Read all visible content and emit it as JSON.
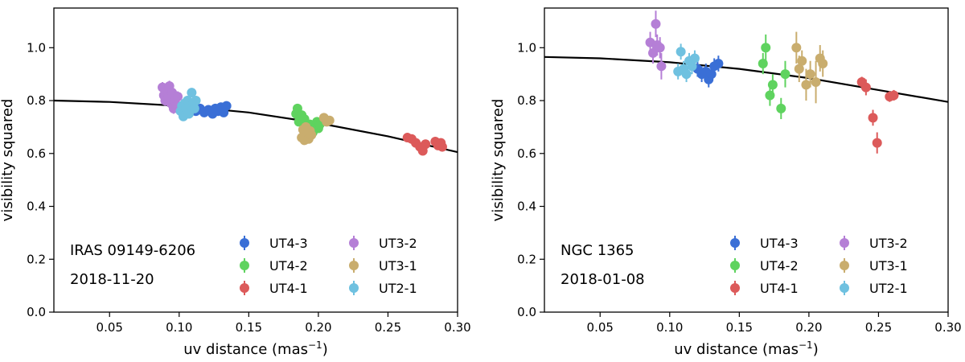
{
  "figure": {
    "series_colors": {
      "UT4-3": "#3a6fd6",
      "UT4-2": "#5fd35f",
      "UT4-1": "#dc5a5a",
      "UT3-2": "#b57fd6",
      "UT3-1": "#c9ad6e",
      "UT2-1": "#6fc1e0"
    },
    "legend_order": [
      "UT4-3",
      "UT4-2",
      "UT4-1",
      "UT3-2",
      "UT3-1",
      "UT2-1"
    ]
  },
  "chart_data": [
    {
      "type": "scatter",
      "name": "IRAS 09149-6206",
      "date": "2018-11-20",
      "xlabel": "uv distance (mas",
      "xlabel_sup": "−1",
      "xlabel_close": ")",
      "ylabel": "visibility squared",
      "xlim": [
        0.01,
        0.3
      ],
      "ylim": [
        0.0,
        1.15
      ],
      "xticks": [
        0.05,
        0.1,
        0.15,
        0.2,
        0.25,
        0.3
      ],
      "xtick_labels": [
        "0.05",
        "0.10",
        "0.15",
        "0.20",
        "0.25",
        "0.30"
      ],
      "yticks": [
        0.0,
        0.2,
        0.4,
        0.6,
        0.8,
        1.0
      ],
      "ytick_labels": [
        "0.0",
        "0.2",
        "0.4",
        "0.6",
        "0.8",
        "1.0"
      ],
      "legend_loc": "lower-right",
      "fit": {
        "v0": 0.8,
        "halfwidth_mas": 0.0,
        "curve": [
          [
            0.01,
            0.8
          ],
          [
            0.05,
            0.795
          ],
          [
            0.1,
            0.78
          ],
          [
            0.15,
            0.755
          ],
          [
            0.2,
            0.715
          ],
          [
            0.25,
            0.665
          ],
          [
            0.3,
            0.605
          ]
        ]
      },
      "series": [
        {
          "name": "UT4-3",
          "points": [
            [
              0.112,
              0.76,
              0.01
            ],
            [
              0.115,
              0.77,
              0.01
            ],
            [
              0.118,
              0.755,
              0.01
            ],
            [
              0.121,
              0.765,
              0.01
            ],
            [
              0.124,
              0.75,
              0.01
            ],
            [
              0.126,
              0.77,
              0.01
            ],
            [
              0.128,
              0.76,
              0.01
            ],
            [
              0.13,
              0.775,
              0.01
            ],
            [
              0.132,
              0.755,
              0.01
            ],
            [
              0.134,
              0.78,
              0.01
            ]
          ]
        },
        {
          "name": "UT4-2",
          "points": [
            [
              0.184,
              0.75,
              0.015
            ],
            [
              0.185,
              0.77,
              0.015
            ],
            [
              0.186,
              0.72,
              0.015
            ],
            [
              0.188,
              0.745,
              0.015
            ],
            [
              0.19,
              0.73,
              0.015
            ],
            [
              0.194,
              0.71,
              0.015
            ],
            [
              0.196,
              0.68,
              0.015
            ],
            [
              0.199,
              0.72,
              0.015
            ],
            [
              0.2,
              0.695,
              0.015
            ],
            [
              0.201,
              0.71,
              0.015
            ]
          ]
        },
        {
          "name": "UT4-1",
          "points": [
            [
              0.264,
              0.66,
              0.01
            ],
            [
              0.267,
              0.655,
              0.01
            ],
            [
              0.27,
              0.64,
              0.01
            ],
            [
              0.273,
              0.625,
              0.01
            ],
            [
              0.275,
              0.61,
              0.01
            ],
            [
              0.277,
              0.635,
              0.01
            ],
            [
              0.284,
              0.645,
              0.01
            ],
            [
              0.286,
              0.63,
              0.01
            ],
            [
              0.288,
              0.64,
              0.01
            ],
            [
              0.289,
              0.625,
              0.01
            ]
          ]
        },
        {
          "name": "UT3-2",
          "points": [
            [
              0.088,
              0.85,
              0.02
            ],
            [
              0.089,
              0.82,
              0.02
            ],
            [
              0.09,
              0.8,
              0.02
            ],
            [
              0.091,
              0.84,
              0.02
            ],
            [
              0.092,
              0.81,
              0.02
            ],
            [
              0.093,
              0.855,
              0.02
            ],
            [
              0.094,
              0.79,
              0.02
            ],
            [
              0.095,
              0.83,
              0.02
            ],
            [
              0.096,
              0.77,
              0.02
            ],
            [
              0.097,
              0.8,
              0.02
            ],
            [
              0.098,
              0.78,
              0.02
            ],
            [
              0.099,
              0.815,
              0.02
            ]
          ]
        },
        {
          "name": "UT3-1",
          "points": [
            [
              0.188,
              0.66,
              0.015
            ],
            [
              0.189,
              0.69,
              0.015
            ],
            [
              0.19,
              0.65,
              0.015
            ],
            [
              0.191,
              0.7,
              0.015
            ],
            [
              0.192,
              0.675,
              0.015
            ],
            [
              0.193,
              0.655,
              0.015
            ],
            [
              0.194,
              0.685,
              0.015
            ],
            [
              0.195,
              0.67,
              0.015
            ],
            [
              0.204,
              0.735,
              0.015
            ],
            [
              0.206,
              0.72,
              0.015
            ],
            [
              0.208,
              0.725,
              0.015
            ]
          ]
        },
        {
          "name": "UT2-1",
          "points": [
            [
              0.101,
              0.76,
              0.015
            ],
            [
              0.102,
              0.78,
              0.015
            ],
            [
              0.103,
              0.74,
              0.015
            ],
            [
              0.104,
              0.79,
              0.015
            ],
            [
              0.105,
              0.77,
              0.015
            ],
            [
              0.106,
              0.8,
              0.015
            ],
            [
              0.107,
              0.75,
              0.015
            ],
            [
              0.108,
              0.78,
              0.015
            ],
            [
              0.109,
              0.83,
              0.015
            ],
            [
              0.11,
              0.79,
              0.015
            ],
            [
              0.111,
              0.77,
              0.015
            ],
            [
              0.112,
              0.8,
              0.015
            ]
          ]
        }
      ]
    },
    {
      "type": "scatter",
      "name": "NGC 1365",
      "date": "2018-01-08",
      "xlabel": "uv distance (mas",
      "xlabel_sup": "−1",
      "xlabel_close": ")",
      "ylabel": "visibility squared",
      "xlim": [
        0.01,
        0.3
      ],
      "ylim": [
        0.0,
        1.15
      ],
      "xticks": [
        0.05,
        0.1,
        0.15,
        0.2,
        0.25,
        0.3
      ],
      "xtick_labels": [
        "0.05",
        "0.10",
        "0.15",
        "0.20",
        "0.25",
        "0.30"
      ],
      "yticks": [
        0.0,
        0.2,
        0.4,
        0.6,
        0.8,
        1.0
      ],
      "ytick_labels": [
        "0.0",
        "0.2",
        "0.4",
        "0.6",
        "0.8",
        "1.0"
      ],
      "legend_loc": "lower-right",
      "fit": {
        "v0": 0.965,
        "curve": [
          [
            0.01,
            0.965
          ],
          [
            0.05,
            0.96
          ],
          [
            0.1,
            0.945
          ],
          [
            0.15,
            0.92
          ],
          [
            0.2,
            0.885
          ],
          [
            0.25,
            0.84
          ],
          [
            0.3,
            0.795
          ]
        ]
      },
      "series": [
        {
          "name": "UT4-3",
          "points": [
            [
              0.12,
              0.92,
              0.03
            ],
            [
              0.123,
              0.9,
              0.03
            ],
            [
              0.126,
              0.91,
              0.03
            ],
            [
              0.128,
              0.88,
              0.03
            ],
            [
              0.13,
              0.9,
              0.03
            ],
            [
              0.132,
              0.93,
              0.03
            ],
            [
              0.135,
              0.94,
              0.03
            ]
          ]
        },
        {
          "name": "UT4-2",
          "points": [
            [
              0.167,
              0.94,
              0.04
            ],
            [
              0.169,
              1.0,
              0.05
            ],
            [
              0.172,
              0.82,
              0.04
            ],
            [
              0.174,
              0.86,
              0.04
            ],
            [
              0.18,
              0.77,
              0.04
            ],
            [
              0.183,
              0.9,
              0.05
            ]
          ]
        },
        {
          "name": "UT4-1",
          "points": [
            [
              0.238,
              0.87,
              0.02
            ],
            [
              0.241,
              0.85,
              0.03
            ],
            [
              0.246,
              0.735,
              0.03
            ],
            [
              0.249,
              0.64,
              0.04
            ],
            [
              0.258,
              0.815,
              0.02
            ],
            [
              0.261,
              0.82,
              0.02
            ]
          ]
        },
        {
          "name": "UT3-2",
          "points": [
            [
              0.086,
              1.02,
              0.04
            ],
            [
              0.088,
              0.98,
              0.04
            ],
            [
              0.09,
              1.09,
              0.05
            ],
            [
              0.091,
              1.01,
              0.04
            ],
            [
              0.093,
              1.0,
              0.04
            ],
            [
              0.094,
              0.93,
              0.05
            ]
          ]
        },
        {
          "name": "UT3-1",
          "points": [
            [
              0.191,
              1.0,
              0.06
            ],
            [
              0.193,
              0.92,
              0.05
            ],
            [
              0.195,
              0.95,
              0.04
            ],
            [
              0.198,
              0.86,
              0.06
            ],
            [
              0.201,
              0.9,
              0.05
            ],
            [
              0.205,
              0.87,
              0.08
            ],
            [
              0.208,
              0.96,
              0.05
            ],
            [
              0.21,
              0.94,
              0.05
            ]
          ]
        },
        {
          "name": "UT2-1",
          "points": [
            [
              0.106,
              0.91,
              0.03
            ],
            [
              0.108,
              0.985,
              0.03
            ],
            [
              0.11,
              0.92,
              0.03
            ],
            [
              0.112,
              0.9,
              0.03
            ],
            [
              0.114,
              0.95,
              0.03
            ],
            [
              0.116,
              0.93,
              0.03
            ],
            [
              0.118,
              0.96,
              0.03
            ]
          ]
        }
      ]
    }
  ]
}
